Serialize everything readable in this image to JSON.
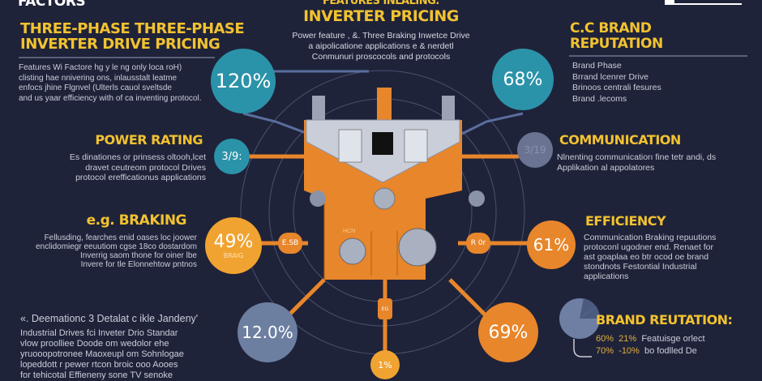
{
  "header": {
    "left_cut": "FACTORS",
    "center_cut": "FEATURES INLALING:",
    "center_title": "INVERTER PRICING",
    "center_lines": [
      "Power feature , &. Three Braking Inwetce Drive",
      "a aipolicatione applications e & nerdetl",
      "Conmunuri proscocols and protocols"
    ]
  },
  "sections": {
    "pricing": {
      "title_1": "THREE-PHASE THREE-PHASE",
      "title_2": "INVERTER DRIVE PRICING",
      "lines": [
        "Features Wi Factore hg y le ng only loca roH)",
        "clisting hae nnivering ons, inlausstalt leatme",
        "enfocs jhine Flgnvel (Ulterls cauol sveltsde",
        "and us yaar efficiency with of ca inventing protocol."
      ]
    },
    "power_rating": {
      "title": "POWER RATING",
      "lines": [
        "Es dinationes or prinsess oltooh,lcet",
        "dravet ceutreom protocol Drives",
        "protocol erefficationus applications"
      ]
    },
    "braking": {
      "title": "e.g. BRAKING",
      "lines": [
        "Fellusding, fearches enid oases loc joower",
        "enclidomiegr eeuutiom cgse 18co dostardom",
        "Inverrig saom thone for oiner lbe",
        "Invere for tle Elonnehtow pntnos"
      ]
    },
    "standard": {
      "title": "«. Deemationc 3 Detalat c ikle Jandeny'",
      "lines": [
        "Industrial Drives fci Inveter Drio Standar",
        "vlow proolliee Doode om wedolor ehe",
        "yruooopotronee Maoxeupl om Sohnlogae",
        "lopeddott r pewer rtcon broic ooo Aooes",
        "for tehicotal Effieneny sone TV senoke"
      ]
    },
    "brand": {
      "title_1": "C.C BRAND",
      "title_2": "REPUTATION",
      "lines": [
        "Brand Phase",
        "Brrand lcenrer Drive",
        "Brinoos centrali fesures",
        "Brand .lecoms"
      ]
    },
    "communication": {
      "title": "COMMUNICATION",
      "lines": [
        "Nlnenting communicatiorı fine tetr andi, ds",
        "Applikation al appolatores"
      ]
    },
    "efficiency": {
      "title": "EFFICIENCY",
      "lines": [
        "Communication Braking repuutions",
        "protoconl ugodner end. Renaet for",
        "ast goaplaa eo btr ocod oe brand",
        "stondnots Festontial Industrial",
        "applications"
      ]
    },
    "brand_rep": {
      "title": "BRAND REUTATION:",
      "rows": [
        {
          "a": "60%",
          "b": "21%",
          "text": "Featuisge orlect"
        },
        {
          "a": "70%",
          "b": "-10%",
          "text": "bo fodlled De"
        }
      ]
    }
  },
  "circles": {
    "c120": "120%",
    "c68": "68%",
    "c39": "3/9:",
    "c_comm": "3/19",
    "c49": "49%",
    "c49_sub": "BRAIG",
    "c61": "61%",
    "c12": "12.0%",
    "c69": "69%",
    "c_bottom": "1%"
  },
  "device": {
    "tag_left": "E.SB",
    "tag_right": "R 0r",
    "panel_label": "HCN",
    "tag_bottom": "EG"
  },
  "colors": {
    "bg": "#1f2339",
    "yellow": "#f2c230",
    "teal": "#2b93a9",
    "orange": "#e8862b",
    "amber": "#f0a330",
    "slate": "#6d7fa1"
  }
}
